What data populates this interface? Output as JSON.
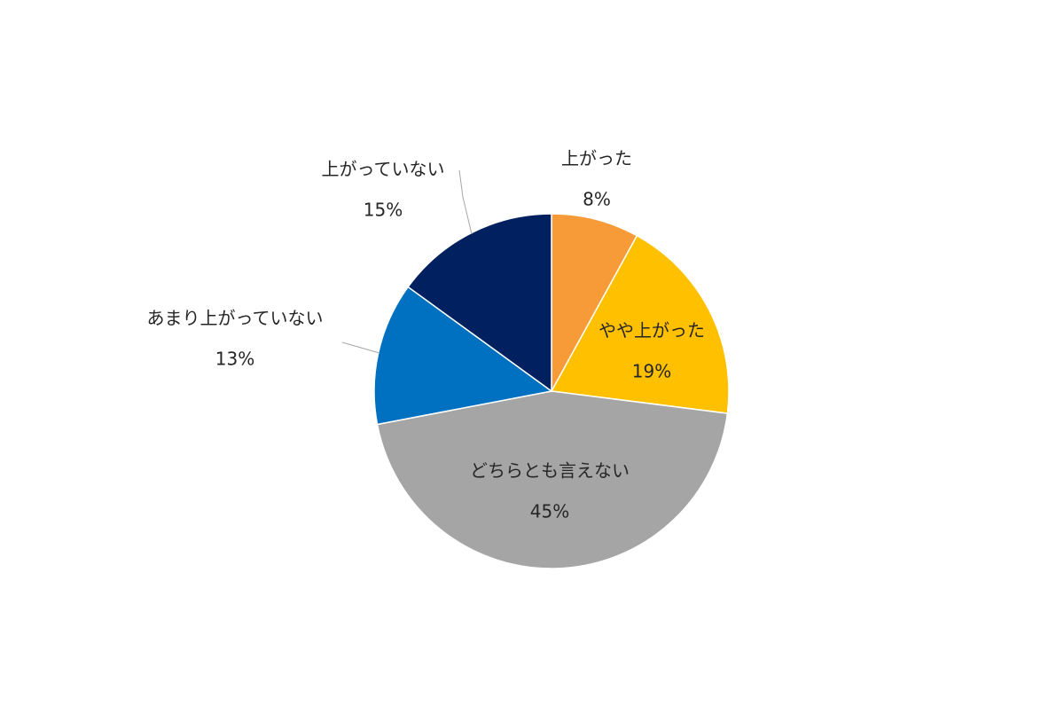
{
  "chart_data": {
    "type": "pie",
    "title": "",
    "start_angle_deg": 0,
    "direction": "clockwise",
    "slices": [
      {
        "label": "上がった",
        "value": 8,
        "value_label": "8%",
        "color": "#F79A38"
      },
      {
        "label": "やや上がった",
        "value": 19,
        "value_label": "19%",
        "color": "#FFC000"
      },
      {
        "label": "どちらとも言えない",
        "value": 45,
        "value_label": "45%",
        "color": "#A5A5A5"
      },
      {
        "label": "あまり上がっていない",
        "value": 13,
        "value_label": "13%",
        "color": "#0070C0"
      },
      {
        "label": "上がっていない",
        "value": 15,
        "value_label": "15%",
        "color": "#002060"
      }
    ]
  }
}
